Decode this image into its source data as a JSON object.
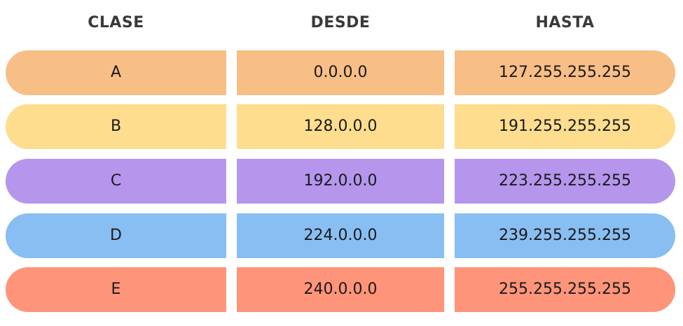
{
  "headers": {
    "clase": "CLASE",
    "desde": "DESDE",
    "hasta": "HASTA"
  },
  "rows": [
    {
      "clase": "A",
      "desde": "0.0.0.0",
      "hasta": "127.255.255.255",
      "color": "#F7BE86"
    },
    {
      "clase": "B",
      "desde": "128.0.0.0",
      "hasta": "191.255.255.255",
      "color": "#FEDD8F"
    },
    {
      "clase": "C",
      "desde": "192.0.0.0",
      "hasta": "223.255.255.255",
      "color": "#B596EC"
    },
    {
      "clase": "D",
      "desde": "224.0.0.0",
      "hasta": "239.255.255.255",
      "color": "#89BEF2"
    },
    {
      "clase": "E",
      "desde": "240.0.0.0",
      "hasta": "255.255.255.255",
      "color": "#FE947A"
    }
  ]
}
